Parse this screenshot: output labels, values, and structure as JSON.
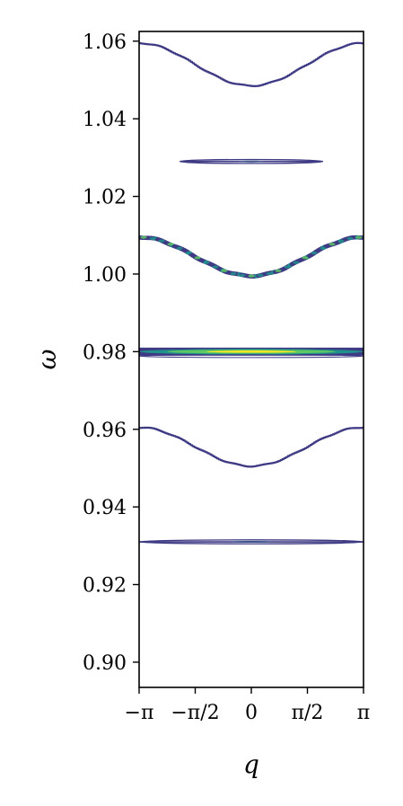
{
  "chart_data": {
    "type": "contour",
    "xlabel": "q",
    "ylabel": "ω",
    "xlim": [
      -3.14159,
      3.14159
    ],
    "ylim": [
      0.8935,
      1.0625
    ],
    "x_ticks": [
      {
        "value": -3.14159,
        "label": "−π"
      },
      {
        "value": -1.5708,
        "label": "−π/2"
      },
      {
        "value": 0,
        "label": "0"
      },
      {
        "value": 1.5708,
        "label": "π/2"
      },
      {
        "value": 3.14159,
        "label": "π"
      }
    ],
    "y_ticks": [
      {
        "value": 0.9,
        "label": "0.90"
      },
      {
        "value": 0.92,
        "label": "0.92"
      },
      {
        "value": 0.94,
        "label": "0.94"
      },
      {
        "value": 0.96,
        "label": "0.96"
      },
      {
        "value": 0.98,
        "label": "0.98"
      },
      {
        "value": 1.0,
        "label": "1.00"
      },
      {
        "value": 1.02,
        "label": "1.02"
      },
      {
        "value": 1.04,
        "label": "1.04"
      },
      {
        "value": 1.06,
        "label": "1.06"
      }
    ],
    "colors": {
      "low": "#440154",
      "mid": "#3b528b",
      "teal": "#21918c",
      "green": "#5ec962",
      "high": "#fde725",
      "line": "#3e3a84"
    },
    "dispersive_bands": [
      {
        "center": 1.0485,
        "half_width": 0.0055,
        "intensity": 0.15
      },
      {
        "center": 0.9995,
        "half_width": 0.005,
        "intensity": 0.9
      },
      {
        "center": 0.9505,
        "half_width": 0.005,
        "intensity": 0.15
      }
    ],
    "flat_bands": [
      {
        "omega": 1.029,
        "q_half_extent": 2.0,
        "intensity": 0.2
      },
      {
        "omega": 0.98,
        "q_half_extent": 3.14159,
        "intensity": 1.0
      },
      {
        "omega": 0.931,
        "q_half_extent": 3.14159,
        "intensity": 0.15
      }
    ]
  }
}
